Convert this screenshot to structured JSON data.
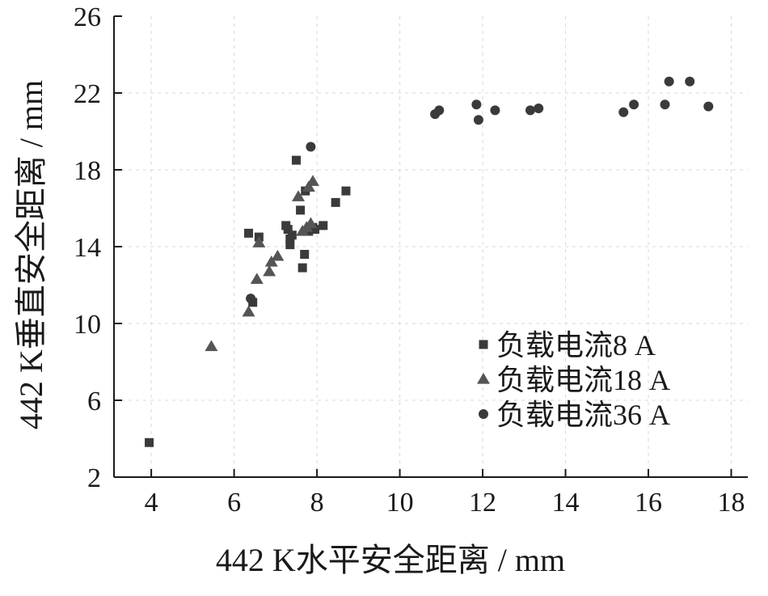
{
  "chart_data": {
    "type": "scatter",
    "xlabel": "442 K水平安全距离 / mm",
    "ylabel": "442 K垂直安全距离 / mm",
    "xlim": [
      3.1,
      18.4
    ],
    "ylim": [
      2,
      26
    ],
    "x_ticks": [
      4,
      6,
      8,
      10,
      12,
      14,
      16,
      18
    ],
    "y_ticks": [
      2,
      6,
      10,
      14,
      18,
      22,
      26
    ],
    "legend_position": "bottom-right",
    "colors": {
      "axis": "#1a1a1a",
      "marker": "#3a3a3a",
      "marker_mid": "#555555",
      "grid": "#d8d8d8"
    },
    "series": [
      {
        "name": "负载电流8 A",
        "marker": "square",
        "points": [
          [
            3.95,
            3.8
          ],
          [
            6.35,
            14.7
          ],
          [
            6.45,
            11.1
          ],
          [
            6.6,
            14.5
          ],
          [
            7.25,
            15.1
          ],
          [
            7.3,
            14.9
          ],
          [
            7.35,
            14.4
          ],
          [
            7.35,
            14.1
          ],
          [
            7.4,
            14.6
          ],
          [
            7.5,
            18.5
          ],
          [
            7.6,
            15.9
          ],
          [
            7.65,
            12.9
          ],
          [
            7.7,
            13.6
          ],
          [
            7.72,
            16.9
          ],
          [
            7.8,
            14.8
          ],
          [
            7.9,
            15.0
          ],
          [
            7.95,
            14.9
          ],
          [
            8.15,
            15.1
          ],
          [
            8.45,
            16.3
          ],
          [
            8.7,
            16.9
          ]
        ]
      },
      {
        "name": "负载电流18 A",
        "marker": "triangle",
        "points": [
          [
            5.45,
            8.8
          ],
          [
            6.35,
            10.6
          ],
          [
            6.55,
            12.3
          ],
          [
            6.6,
            14.2
          ],
          [
            6.85,
            12.7
          ],
          [
            6.9,
            13.2
          ],
          [
            7.05,
            13.5
          ],
          [
            7.55,
            16.6
          ],
          [
            7.65,
            14.8
          ],
          [
            7.75,
            15.0
          ],
          [
            7.8,
            17.1
          ],
          [
            7.85,
            15.2
          ],
          [
            7.9,
            17.4
          ]
        ]
      },
      {
        "name": "负载电流36 A",
        "marker": "circle",
        "points": [
          [
            6.4,
            11.3
          ],
          [
            7.85,
            19.2
          ],
          [
            10.85,
            20.9
          ],
          [
            10.95,
            21.1
          ],
          [
            11.85,
            21.4
          ],
          [
            11.9,
            20.6
          ],
          [
            12.3,
            21.1
          ],
          [
            13.15,
            21.1
          ],
          [
            13.35,
            21.2
          ],
          [
            15.4,
            21.0
          ],
          [
            15.65,
            21.4
          ],
          [
            16.4,
            21.4
          ],
          [
            16.5,
            22.6
          ],
          [
            17.0,
            22.6
          ],
          [
            17.45,
            21.3
          ]
        ]
      }
    ]
  }
}
